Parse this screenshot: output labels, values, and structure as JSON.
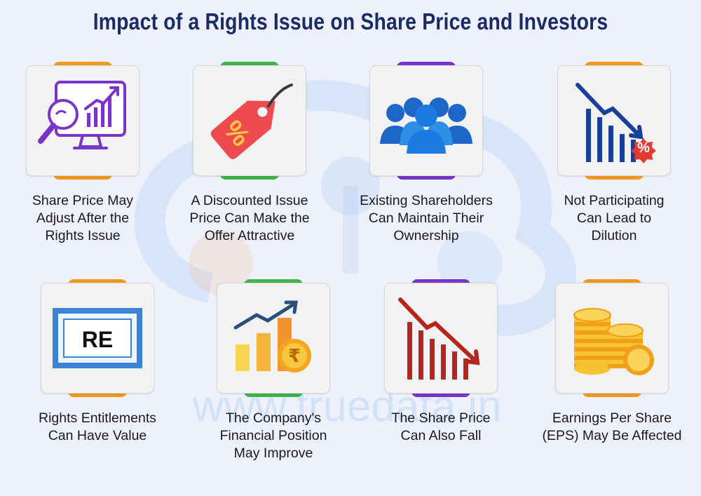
{
  "title": "Impact of a Rights Issue on Share Price and Investors",
  "watermark": "www.truedata.in",
  "colors": {
    "title": "#1b2b63",
    "orange": "#f39a1b",
    "green": "#3cb54a",
    "purple": "#7a35c8",
    "blue": "#1a4fa8",
    "red": "#d8342c"
  },
  "cards": [
    {
      "label": "Share Price May\nAdjust After the\nRights Issue",
      "icon": "analytics-monitor-icon",
      "tab_color": "#f39a1b"
    },
    {
      "label": "A Discounted Issue\nPrice Can Make the\nOffer Attractive",
      "icon": "discount-tag-icon",
      "tab_color": "#3cb54a"
    },
    {
      "label": "Existing Shareholders\nCan Maintain Their\nOwnership",
      "icon": "shareholders-group-icon",
      "tab_color": "#7a35c8"
    },
    {
      "label": "Not Participating\nCan Lead to\nDilution",
      "icon": "falling-chart-percent-icon",
      "tab_color": "#f39a1b"
    },
    {
      "label": "Rights Entitlements\nCan Have Value",
      "icon": "re-certificate-icon",
      "tab_color": "#f39a1b",
      "badge_text": "RE"
    },
    {
      "label": "The Company's\nFinancial Position\nMay Improve",
      "icon": "growth-bars-rupee-icon",
      "tab_color": "#3cb54a"
    },
    {
      "label": "The Share Price\nCan Also Fall",
      "icon": "falling-bars-icon",
      "tab_color": "#7a35c8"
    },
    {
      "label": "Earnings Per Share\n(EPS) May Be Affected",
      "icon": "coin-stacks-icon",
      "tab_color": "#f39a1b"
    }
  ]
}
